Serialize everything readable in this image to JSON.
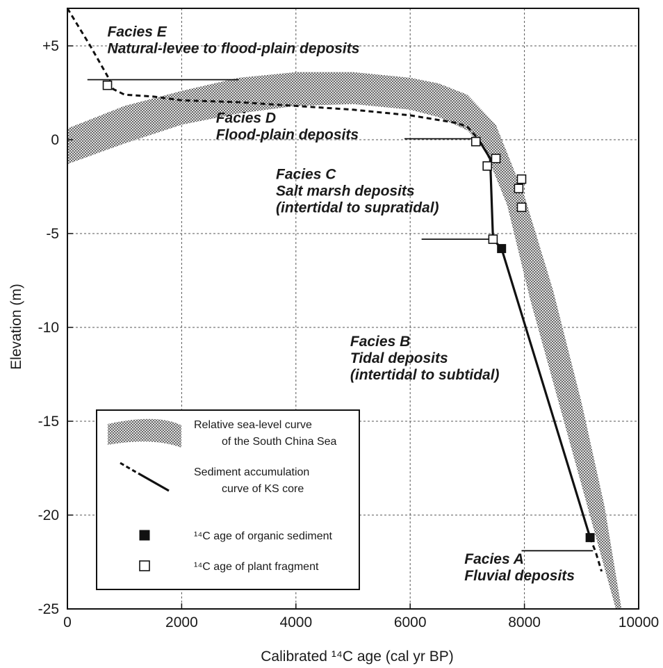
{
  "chart_data": {
    "type": "line",
    "xlabel": "Calibrated ¹⁴C age (cal yr BP)",
    "ylabel": "Elevation (m)",
    "xlim": [
      0,
      10000
    ],
    "ylim": [
      -25,
      7
    ],
    "xticks": [
      {
        "v": 0,
        "label": "0"
      },
      {
        "v": 2000,
        "label": "2000"
      },
      {
        "v": 4000,
        "label": "4000"
      },
      {
        "v": 6000,
        "label": "6000"
      },
      {
        "v": 8000,
        "label": "8000"
      },
      {
        "v": 10000,
        "label": "10000"
      }
    ],
    "yticks": [
      {
        "v": 5,
        "label": "+5"
      },
      {
        "v": 0,
        "label": "0"
      },
      {
        "v": -5,
        "label": "-5"
      },
      {
        "v": -10,
        "label": "-10"
      },
      {
        "v": -15,
        "label": "-15"
      },
      {
        "v": -20,
        "label": "-20"
      },
      {
        "v": -25,
        "label": "-25"
      }
    ],
    "grid": true,
    "sea_level_band": {
      "upper": [
        [
          0,
          0.6
        ],
        [
          1000,
          1.8
        ],
        [
          2000,
          2.6
        ],
        [
          3000,
          3.3
        ],
        [
          4000,
          3.6
        ],
        [
          5000,
          3.6
        ],
        [
          6000,
          3.3
        ],
        [
          6500,
          3.0
        ],
        [
          7000,
          2.4
        ],
        [
          7500,
          0.8
        ],
        [
          8000,
          -3.0
        ],
        [
          8500,
          -8.0
        ],
        [
          9000,
          -14.0
        ],
        [
          9400,
          -19.5
        ],
        [
          9700,
          -25.0
        ]
      ],
      "lower": [
        [
          0,
          -1.3
        ],
        [
          1000,
          -0.2
        ],
        [
          2000,
          0.8
        ],
        [
          3000,
          1.4
        ],
        [
          4000,
          1.8
        ],
        [
          5000,
          1.9
        ],
        [
          6000,
          1.6
        ],
        [
          6500,
          1.2
        ],
        [
          7000,
          0.5
        ],
        [
          7300,
          -0.5
        ],
        [
          7700,
          -3.5
        ],
        [
          8100,
          -8.5
        ],
        [
          8600,
          -14.0
        ],
        [
          9100,
          -19.5
        ],
        [
          9600,
          -25.0
        ]
      ]
    },
    "accumulation_dashed": [
      [
        [
          0,
          7
        ],
        [
          400,
          5.0
        ],
        [
          700,
          3.4
        ],
        [
          800,
          2.7
        ],
        [
          1000,
          2.4
        ],
        [
          1500,
          2.3
        ],
        [
          2000,
          2.1
        ],
        [
          3000,
          2.0
        ],
        [
          4000,
          1.8
        ],
        [
          5000,
          1.6
        ],
        [
          6000,
          1.3
        ],
        [
          6800,
          0.9
        ],
        [
          7000,
          0.7
        ],
        [
          7200,
          0.0
        ]
      ],
      [
        [
          9150,
          -21.2
        ],
        [
          9250,
          -22.0
        ],
        [
          9350,
          -23.0
        ]
      ]
    ],
    "accumulation_solid": [
      [
        7200,
        0.0
      ],
      [
        7400,
        -1.0
      ],
      [
        7450,
        -5.3
      ],
      [
        7600,
        -5.8
      ],
      [
        9150,
        -21.2
      ]
    ],
    "organic_sediment_points": [
      [
        7600,
        -5.8
      ],
      [
        9150,
        -21.2
      ]
    ],
    "plant_fragment_points": [
      [
        700,
        2.9
      ],
      [
        7150,
        -0.1
      ],
      [
        7350,
        -1.4
      ],
      [
        7500,
        -1.0
      ],
      [
        7450,
        -5.3
      ],
      [
        7900,
        -2.6
      ],
      [
        7950,
        -2.1
      ],
      [
        7950,
        -3.6
      ]
    ],
    "facies_boundaries": [
      {
        "x": [
          350,
          3000
        ],
        "y": 3.2
      },
      {
        "x": [
          5900,
          7200
        ],
        "y": 0.05
      },
      {
        "x": [
          6200,
          7400
        ],
        "y": -5.3
      },
      {
        "x": [
          7950,
          9200
        ],
        "y": -21.9
      }
    ],
    "annotations": [
      {
        "name": "facies-e",
        "x": 700,
        "y": 5.5,
        "lines": [
          "Facies E",
          "Natural-levee to flood-plain deposits"
        ]
      },
      {
        "name": "facies-d",
        "x": 2600,
        "y": 0.9,
        "lines": [
          "Facies D",
          "Flood-plain deposits"
        ]
      },
      {
        "name": "facies-c",
        "x": 3650,
        "y": -2.1,
        "lines": [
          "Facies C",
          "Salt marsh deposits",
          "(intertidal to supratidal)"
        ]
      },
      {
        "name": "facies-b",
        "x": 4950,
        "y": -11.0,
        "lines": [
          "Facies B",
          "Tidal deposits",
          "(intertidal to subtidal)"
        ]
      },
      {
        "name": "facies-a",
        "x": 6950,
        "y": -22.6,
        "lines": [
          "Facies A",
          "Fluvial deposits"
        ]
      }
    ],
    "legend": {
      "placement": "bottom-left",
      "entries": [
        {
          "key": "band",
          "lines": [
            "Relative sea-level curve",
            "of the South China Sea"
          ]
        },
        {
          "key": "line",
          "lines": [
            "Sediment accumulation",
            "curve of KS core"
          ]
        },
        {
          "key": "filled-square",
          "lines": [
            "¹⁴C age of organic sediment"
          ]
        },
        {
          "key": "open-square",
          "lines": [
            "¹⁴C age of plant fragment"
          ]
        }
      ]
    },
    "colors": {
      "band": "#9a9a9a",
      "line": "#111111",
      "grid": "#555555"
    }
  }
}
